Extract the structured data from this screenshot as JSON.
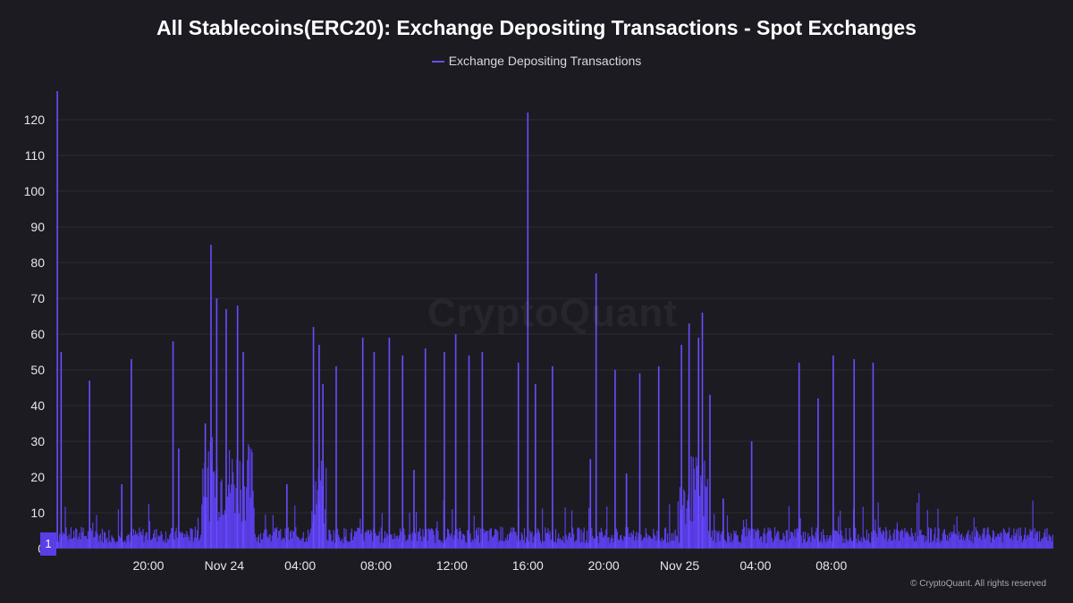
{
  "header": {
    "title": "All Stablecoins(ERC20): Exchange Depositing Transactions - Spot Exchanges",
    "legend_label": "Exchange Depositing Transactions"
  },
  "watermark": "CryptoQuant",
  "copyright": "© CryptoQuant. All rights reserved",
  "cursor_label": "1",
  "colors": {
    "background": "#1c1b22",
    "series": "#5b3ee8",
    "grid": "#2c2b33"
  },
  "chart_data": {
    "type": "area",
    "title": "All Stablecoins(ERC20): Exchange Depositing Transactions - Spot Exchanges",
    "xlabel": "",
    "ylabel": "",
    "ylim": [
      0,
      130
    ],
    "yticks": [
      0,
      10,
      20,
      30,
      40,
      50,
      60,
      70,
      80,
      90,
      100,
      110,
      120
    ],
    "grid": true,
    "legend": "top-center",
    "x_tick_labels": [
      "20:00",
      "Nov 24",
      "04:00",
      "08:00",
      "12:00",
      "16:00",
      "20:00",
      "Nov 25",
      "04:00",
      "08:00"
    ],
    "x_range_hours": [
      0,
      51.7
    ],
    "x_tick_hours": [
      4,
      8,
      12,
      16,
      20,
      24,
      28,
      32,
      36,
      40
    ],
    "series": [
      {
        "name": "Exchange Depositing Transactions",
        "spikes": [
          [
            -0.8,
            128
          ],
          [
            -0.6,
            55
          ],
          [
            0.9,
            47
          ],
          [
            2.6,
            18
          ],
          [
            3.1,
            53
          ],
          [
            5.3,
            58
          ],
          [
            5.6,
            28
          ],
          [
            7.0,
            35
          ],
          [
            7.3,
            85
          ],
          [
            7.6,
            70
          ],
          [
            8.1,
            67
          ],
          [
            8.7,
            68
          ],
          [
            9.0,
            55
          ],
          [
            11.3,
            18
          ],
          [
            12.7,
            62
          ],
          [
            13.0,
            57
          ],
          [
            13.2,
            46
          ],
          [
            13.9,
            51
          ],
          [
            15.3,
            59
          ],
          [
            15.9,
            55
          ],
          [
            16.7,
            59
          ],
          [
            17.4,
            54
          ],
          [
            18.0,
            22
          ],
          [
            18.6,
            56
          ],
          [
            19.6,
            55
          ],
          [
            20.2,
            60
          ],
          [
            20.9,
            54
          ],
          [
            21.6,
            55
          ],
          [
            23.5,
            52
          ],
          [
            24.0,
            122
          ],
          [
            24.4,
            46
          ],
          [
            25.3,
            51
          ],
          [
            27.3,
            25
          ],
          [
            27.6,
            77
          ],
          [
            28.6,
            50
          ],
          [
            29.2,
            21
          ],
          [
            29.9,
            49
          ],
          [
            30.9,
            51
          ],
          [
            32.1,
            57
          ],
          [
            32.5,
            63
          ],
          [
            33.0,
            59
          ],
          [
            33.2,
            66
          ],
          [
            33.6,
            43
          ],
          [
            34.3,
            14
          ],
          [
            35.8,
            30
          ],
          [
            38.3,
            52
          ],
          [
            39.3,
            42
          ],
          [
            40.1,
            54
          ],
          [
            41.2,
            53
          ],
          [
            42.2,
            52
          ]
        ],
        "baseline": 5,
        "bursts": [
          {
            "from": 6.8,
            "to": 9.6,
            "level": 25
          },
          {
            "from": 12.6,
            "to": 13.4,
            "level": 20
          },
          {
            "from": 32.0,
            "to": 33.5,
            "level": 22
          }
        ]
      }
    ]
  }
}
